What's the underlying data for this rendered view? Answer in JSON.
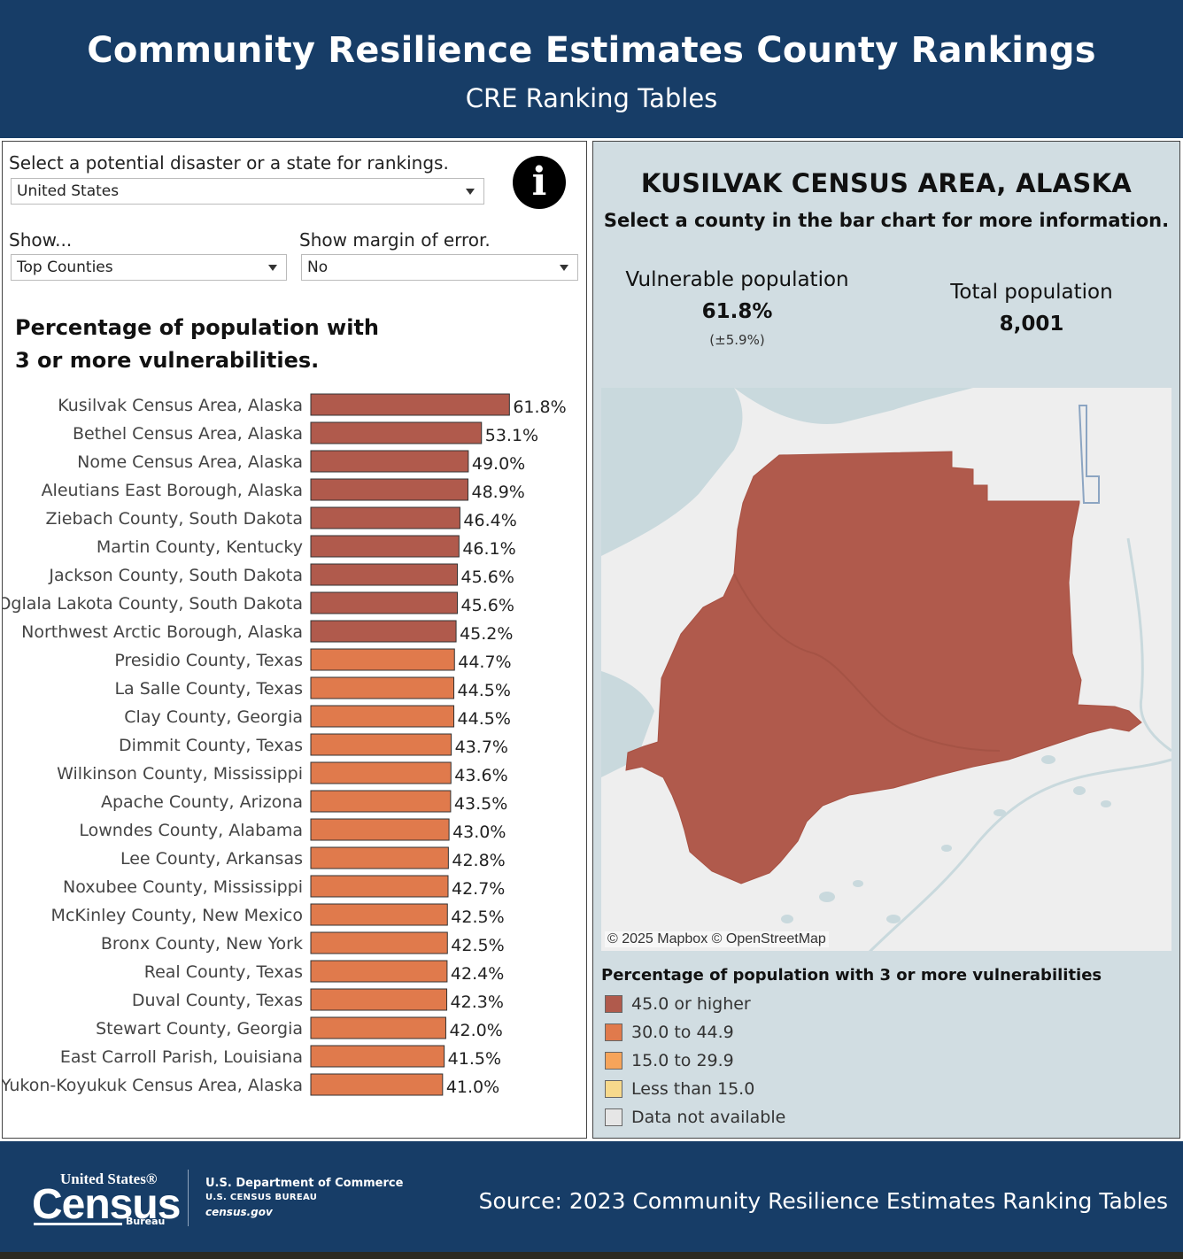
{
  "header": {
    "title": "Community Resilience Estimates County Rankings",
    "subtitle": "CRE Ranking Tables"
  },
  "controls": {
    "disaster_label": "Select a potential disaster or a state for rankings.",
    "disaster_value": "United States",
    "show_label": "Show...",
    "show_value": "Top Counties",
    "moe_label": "Show margin of error.",
    "moe_value": "No",
    "info_icon": "i"
  },
  "chart_data": {
    "type": "bar",
    "orientation": "horizontal",
    "title": "Percentage of population with 3 or more vulnerabilities.",
    "categories": [
      "Kusilvak Census Area, Alaska",
      "Bethel Census Area, Alaska",
      "Nome Census Area, Alaska",
      "Aleutians East Borough, Alaska",
      "Ziebach County, South Dakota",
      "Martin County, Kentucky",
      "Jackson County, South Dakota",
      "Oglala Lakota County, South Dakota",
      "Northwest Arctic Borough, Alaska",
      "Presidio County, Texas",
      "La Salle County, Texas",
      "Clay County, Georgia",
      "Dimmit County, Texas",
      "Wilkinson County, Mississippi",
      "Apache County, Arizona",
      "Lowndes County, Alabama",
      "Lee County, Arkansas",
      "Noxubee County, Mississippi",
      "McKinley County, New Mexico",
      "Bronx County, New York",
      "Real County, Texas",
      "Duval County, Texas",
      "Stewart County, Georgia",
      "East Carroll Parish, Louisiana",
      "Yukon-Koyukuk Census Area, Alaska"
    ],
    "values": [
      61.8,
      53.1,
      49.0,
      48.9,
      46.4,
      46.1,
      45.6,
      45.6,
      45.2,
      44.7,
      44.5,
      44.5,
      43.7,
      43.6,
      43.5,
      43.0,
      42.8,
      42.7,
      42.5,
      42.5,
      42.4,
      42.3,
      42.0,
      41.5,
      41.0
    ],
    "value_labels": [
      "61.8%",
      "53.1%",
      "49.0%",
      "48.9%",
      "46.4%",
      "46.1%",
      "45.6%",
      "45.6%",
      "45.2%",
      "44.7%",
      "44.5%",
      "44.5%",
      "43.7%",
      "43.6%",
      "43.5%",
      "43.0%",
      "42.8%",
      "42.7%",
      "42.5%",
      "42.5%",
      "42.4%",
      "42.3%",
      "42.0%",
      "41.5%",
      "41.0%"
    ],
    "xlim": [
      0,
      70
    ],
    "grid": false,
    "colors": {
      "high": "#b05a4c",
      "mid": "#e07a4c"
    },
    "color_threshold": 45.0
  },
  "detail": {
    "county_title": "KUSILVAK CENSUS AREA, ALASKA",
    "instruction": "Select a county in the bar chart for more information.",
    "vulnerable_label": "Vulnerable population",
    "vulnerable_value": "61.8%",
    "vulnerable_moe": "(±5.9%)",
    "total_label": "Total population",
    "total_value": "8,001"
  },
  "map": {
    "attribution": "© 2025 Mapbox  © OpenStreetMap",
    "county_color": "#b05a4c",
    "water_color": "#c9d9dd",
    "land_color": "#eeeeee"
  },
  "legend": {
    "title": "Percentage of population with 3 or more vulnerabilities",
    "items": [
      {
        "label": "45.0 or higher",
        "color": "#b05a4c"
      },
      {
        "label": "30.0 to 44.9",
        "color": "#e07a4c"
      },
      {
        "label": "15.0 to 29.9",
        "color": "#f6a45a"
      },
      {
        "label": "Less than 15.0",
        "color": "#f7d98c"
      },
      {
        "label": "Data not available",
        "color": "#e6e6e6"
      }
    ]
  },
  "footer": {
    "logo_top": "United States®",
    "logo_main": "Census",
    "logo_sub": "Bureau",
    "dept": "U.S. Department of Commerce",
    "bureau": "U.S. CENSUS BUREAU",
    "site": "census.gov",
    "source": "Source: 2023 Community Resilience Estimates Ranking Tables"
  }
}
